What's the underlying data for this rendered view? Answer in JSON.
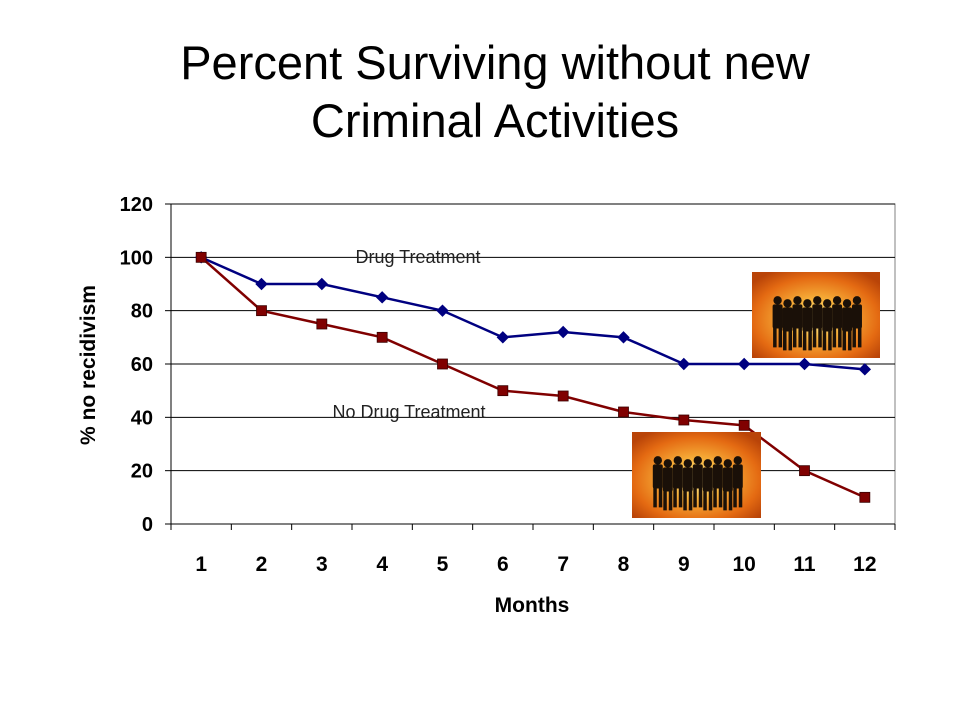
{
  "slide": {
    "title_line1": "Percent Surviving without new",
    "title_line2": "Criminal Activities"
  },
  "chart_data": {
    "type": "line",
    "xlabel": "Months",
    "ylabel": "% no recidivism",
    "categories": [
      "1",
      "2",
      "3",
      "4",
      "5",
      "6",
      "7",
      "8",
      "9",
      "10",
      "11",
      "12"
    ],
    "ylim": [
      0,
      120
    ],
    "yticks": [
      0,
      20,
      40,
      60,
      80,
      100,
      120
    ],
    "grid": "horizontal",
    "series": [
      {
        "name": "Drug Treatment",
        "color": "#000080",
        "marker": "diamond",
        "values": [
          100,
          90,
          90,
          85,
          80,
          70,
          72,
          70,
          60,
          60,
          60,
          58
        ]
      },
      {
        "name": "No Drug Treatment",
        "color": "#800000",
        "marker": "square",
        "values": [
          100,
          80,
          75,
          70,
          60,
          50,
          48,
          42,
          39,
          37,
          20,
          10
        ]
      }
    ]
  },
  "decorations": {
    "images": [
      "people-silhouette-image",
      "people-silhouette-image"
    ]
  }
}
